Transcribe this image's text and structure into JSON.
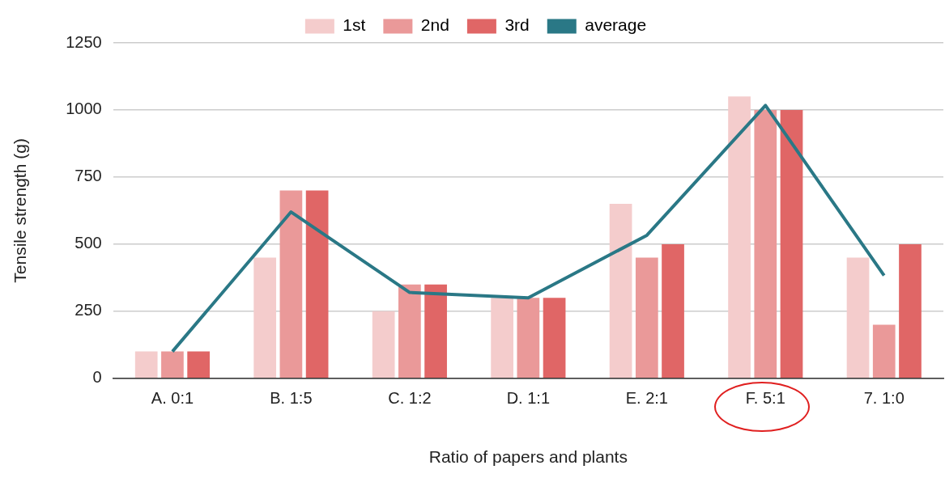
{
  "chart_data": {
    "type": "bar",
    "xlabel": "Ratio of papers and plants",
    "ylabel": "Tensile strength (g)",
    "categories": [
      "A. 0:1",
      "B. 1:5",
      "C. 1:2",
      "D. 1:1",
      "E. 2:1",
      "F. 5:1",
      "7. 1:0"
    ],
    "series": [
      {
        "name": "1st",
        "color": "#f4cccc",
        "values": [
          100,
          450,
          250,
          300,
          650,
          1050,
          450
        ]
      },
      {
        "name": "2nd",
        "color": "#ea9999",
        "values": [
          100,
          700,
          350,
          300,
          450,
          1000,
          200
        ]
      },
      {
        "name": "3rd",
        "color": "#e06666",
        "values": [
          100,
          700,
          350,
          300,
          500,
          1000,
          500
        ]
      },
      {
        "name": "average",
        "type": "line",
        "color": "#2a7886",
        "values": [
          100,
          620,
          320,
          300,
          533,
          1017,
          383
        ]
      }
    ],
    "ylim": [
      0,
      1250
    ],
    "yticks": [
      0,
      250,
      500,
      750,
      1000,
      1250
    ],
    "grid": "y",
    "legend": "top",
    "marker": "none",
    "line_style": "solid"
  }
}
